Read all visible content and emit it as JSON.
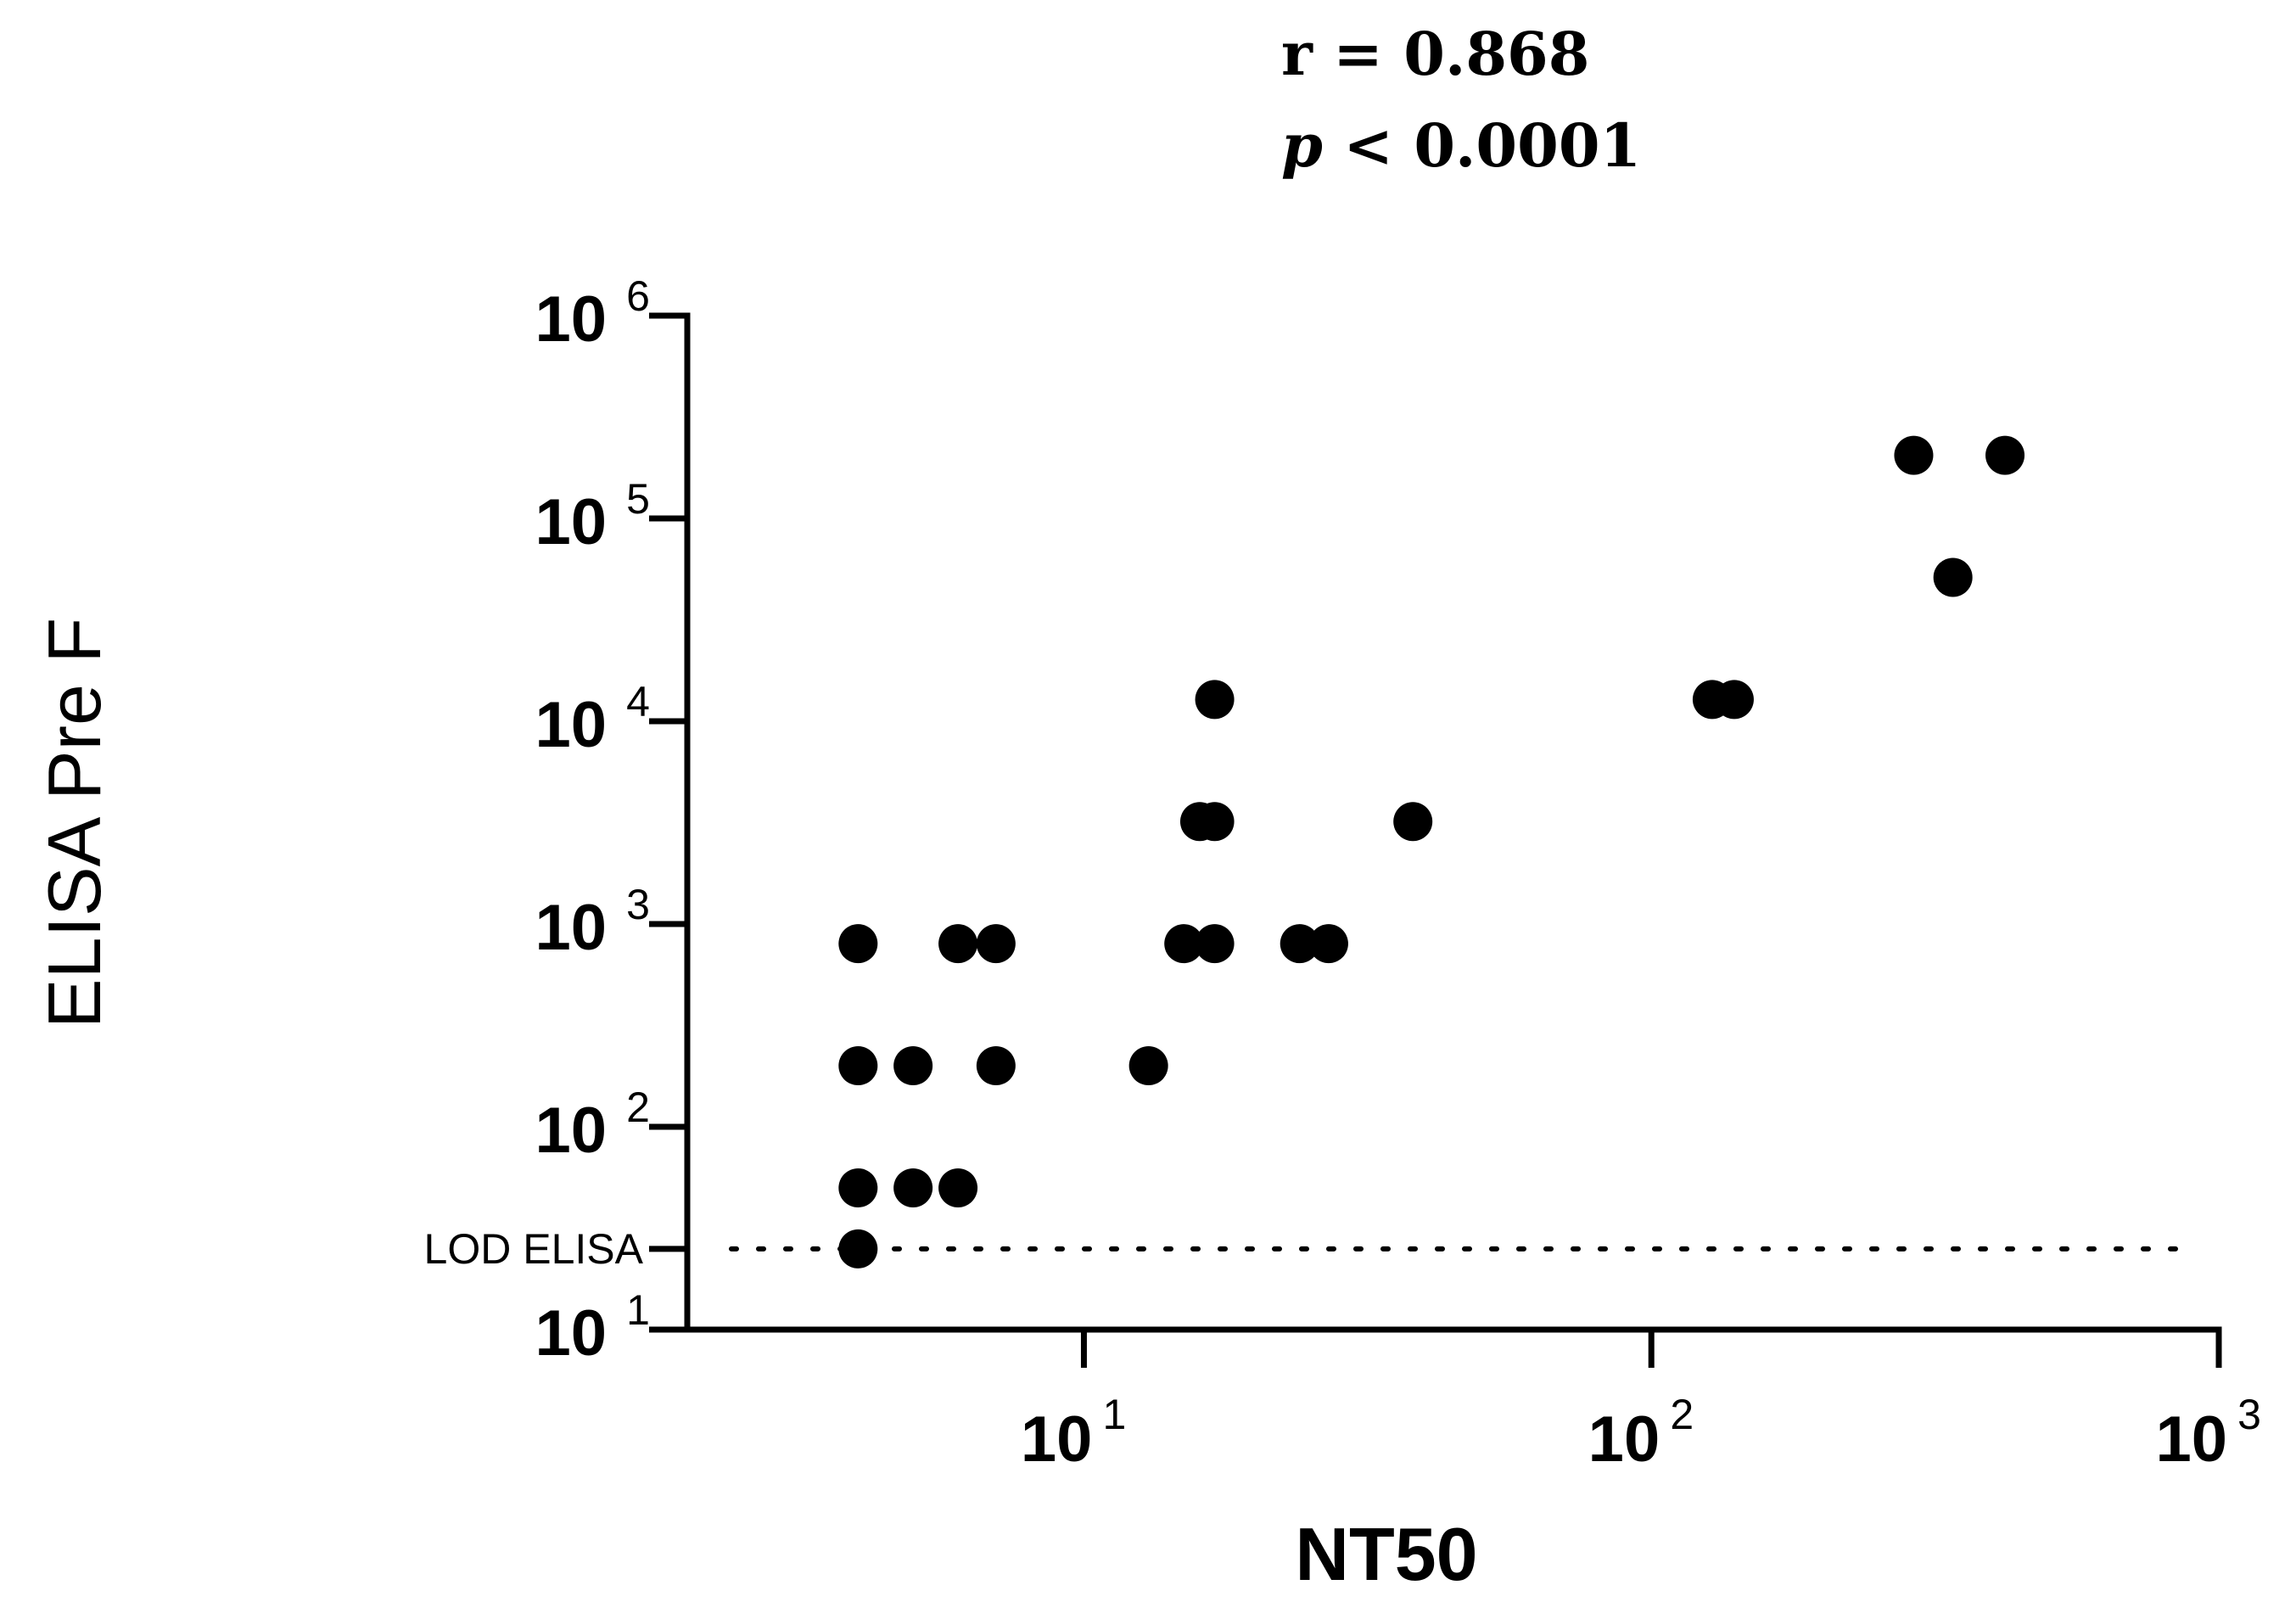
{
  "stats": {
    "r_text": "r = 0.868",
    "p_symbol": "p",
    "p_text": " < 0.0001"
  },
  "chart_data": {
    "type": "scatter",
    "title": "",
    "xlabel": "NT50",
    "ylabel": "ELISA Pre F",
    "xscale": "log",
    "yscale": "log",
    "xlim": [
      2,
      1000
    ],
    "ylim": [
      10,
      1000000
    ],
    "x_ticks": [
      {
        "value": 10,
        "base": "10",
        "exp": "1"
      },
      {
        "value": 100,
        "base": "10",
        "exp": "2"
      },
      {
        "value": 1000,
        "base": "10",
        "exp": "3"
      }
    ],
    "y_ticks": [
      {
        "value": 10,
        "base": "10",
        "exp": "1"
      },
      {
        "value": 100,
        "base": "10",
        "exp": "2"
      },
      {
        "value": 1000,
        "base": "10",
        "exp": "3"
      },
      {
        "value": 10000,
        "base": "10",
        "exp": "4"
      },
      {
        "value": 100000,
        "base": "10",
        "exp": "5"
      },
      {
        "value": 1000000,
        "base": "10",
        "exp": "6"
      }
    ],
    "reference_line": {
      "label": "LOD ELISA",
      "y": 25,
      "style": "dotted"
    },
    "points": [
      {
        "x": 4,
        "y": 25
      },
      {
        "x": 4,
        "y": 50
      },
      {
        "x": 5,
        "y": 50
      },
      {
        "x": 6,
        "y": 50
      },
      {
        "x": 4,
        "y": 200
      },
      {
        "x": 5,
        "y": 200
      },
      {
        "x": 7,
        "y": 200
      },
      {
        "x": 13,
        "y": 200
      },
      {
        "x": 4,
        "y": 800
      },
      {
        "x": 6,
        "y": 800
      },
      {
        "x": 7,
        "y": 800
      },
      {
        "x": 15,
        "y": 800
      },
      {
        "x": 17,
        "y": 800
      },
      {
        "x": 24,
        "y": 800
      },
      {
        "x": 27,
        "y": 800
      },
      {
        "x": 16,
        "y": 3200
      },
      {
        "x": 17,
        "y": 3200
      },
      {
        "x": 38,
        "y": 3200
      },
      {
        "x": 17,
        "y": 12800
      },
      {
        "x": 128,
        "y": 12800
      },
      {
        "x": 140,
        "y": 12800
      },
      {
        "x": 340,
        "y": 51200
      },
      {
        "x": 290,
        "y": 204800
      },
      {
        "x": 420,
        "y": 204800
      }
    ]
  }
}
